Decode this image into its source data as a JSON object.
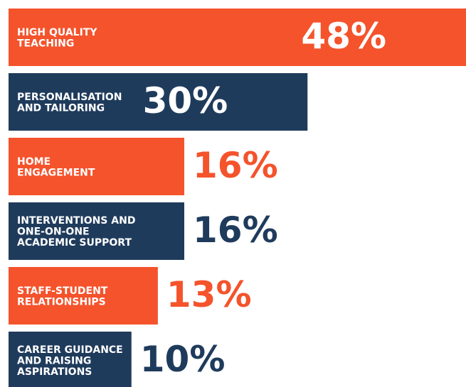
{
  "chart_data": {
    "type": "bar",
    "orientation": "horizontal",
    "categories": [
      [
        "HIGH QUALITY",
        "TEACHING"
      ],
      [
        "PERSONALISATION",
        "AND TAILORING"
      ],
      [
        "HOME",
        "ENGAGEMENT"
      ],
      [
        "INTERVENTIONS AND",
        "ONE-ON-ONE",
        "ACADEMIC SUPPORT"
      ],
      [
        "STAFF-STUDENT",
        "RELATIONSHIPS"
      ],
      [
        "CAREER GUIDANCE",
        "AND RAISING",
        "ASPIRATIONS"
      ]
    ],
    "values": [
      48,
      30,
      16,
      16,
      13,
      10
    ],
    "value_labels": [
      "48%",
      "30%",
      "16%",
      "16%",
      "13%",
      "10%"
    ],
    "colors": [
      "#f4532c",
      "#1f3b5c",
      "#f4532c",
      "#1f3b5c",
      "#f4532c",
      "#1f3b5c"
    ]
  }
}
